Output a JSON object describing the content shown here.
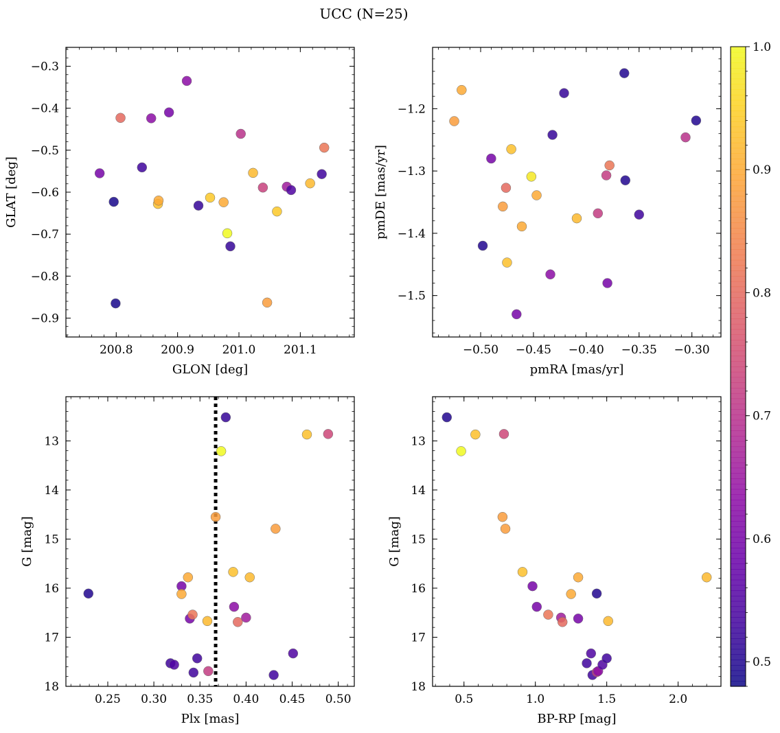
{
  "figure": {
    "title": "UCC (N=25)"
  },
  "colormap": {
    "name": "plasma",
    "min": 0.48,
    "max": 1.0,
    "ticks": [
      "0.5",
      "0.6",
      "0.7",
      "0.8",
      "0.9",
      "1.0"
    ],
    "tick_values": [
      0.5,
      0.6,
      0.7,
      0.8,
      0.9,
      1.0
    ]
  },
  "chart_data": [
    {
      "type": "scatter",
      "panel": "top-left",
      "xlabel": "GLON [deg]",
      "ylabel": "GLAT [deg]",
      "xlim": [
        200.718,
        201.188
      ],
      "ylim": [
        -0.945,
        -0.255
      ],
      "y_inverted": false,
      "xticks": [
        200.8,
        200.9,
        201.0,
        201.1
      ],
      "xtick_labels": [
        "200.8",
        "200.9",
        "201.0",
        "201.1"
      ],
      "yticks": [
        -0.9,
        -0.8,
        -0.7,
        -0.6,
        -0.5,
        -0.4,
        -0.3
      ],
      "ytick_labels": [
        "−0.9",
        "−0.8",
        "−0.7",
        "−0.6",
        "−0.5",
        "−0.4",
        "−0.3"
      ],
      "x": [
        200.773,
        200.796,
        200.799,
        200.807,
        200.842,
        200.857,
        200.868,
        200.869,
        200.886,
        200.915,
        200.934,
        200.953,
        200.975,
        200.981,
        200.986,
        201.003,
        201.023,
        201.039,
        201.046,
        201.062,
        201.078,
        201.085,
        201.116,
        201.135,
        201.139
      ],
      "y": [
        -0.555,
        -0.623,
        -0.865,
        -0.423,
        -0.541,
        -0.424,
        -0.628,
        -0.62,
        -0.41,
        -0.335,
        -0.632,
        -0.613,
        -0.624,
        -0.698,
        -0.729,
        -0.461,
        -0.554,
        -0.589,
        -0.863,
        -0.646,
        -0.587,
        -0.595,
        -0.579,
        -0.557,
        -0.494
      ],
      "c": [
        0.6,
        0.49,
        0.49,
        0.8,
        0.53,
        0.63,
        0.93,
        0.9,
        0.6,
        0.63,
        0.52,
        0.94,
        0.9,
        1.0,
        0.52,
        0.7,
        0.92,
        0.73,
        0.88,
        0.94,
        0.66,
        0.55,
        0.92,
        0.53,
        0.82
      ]
    },
    {
      "type": "scatter",
      "panel": "top-right",
      "xlabel": "pmRA [mas/yr]",
      "ylabel": "pmDE [mas/yr]",
      "xlim": [
        -0.5455,
        -0.2725
      ],
      "ylim": [
        -1.5665,
        -1.1015
      ],
      "y_inverted": false,
      "xticks": [
        -0.5,
        -0.45,
        -0.4,
        -0.35,
        -0.3
      ],
      "xtick_labels": [
        "−0.50",
        "−0.45",
        "−0.40",
        "−0.35",
        "−0.30"
      ],
      "yticks": [
        -1.5,
        -1.4,
        -1.3,
        -1.2
      ],
      "ytick_labels": [
        "−1.5",
        "−1.4",
        "−1.3",
        "−1.2"
      ],
      "x": [
        -0.525,
        -0.518,
        -0.498,
        -0.49,
        -0.479,
        -0.476,
        -0.475,
        -0.471,
        -0.466,
        -0.461,
        -0.452,
        -0.447,
        -0.434,
        -0.432,
        -0.421,
        -0.409,
        -0.389,
        -0.381,
        -0.38,
        -0.378,
        -0.364,
        -0.363,
        -0.35,
        -0.306,
        -0.296
      ],
      "y": [
        -1.22,
        -1.17,
        -1.42,
        -1.28,
        -1.357,
        -1.327,
        -1.447,
        -1.265,
        -1.53,
        -1.389,
        -1.309,
        -1.339,
        -1.466,
        -1.242,
        -1.175,
        -1.376,
        -1.368,
        -1.307,
        -1.48,
        -1.291,
        -1.143,
        -1.315,
        -1.37,
        -1.246,
        -1.219
      ],
      "c": [
        0.88,
        0.9,
        0.5,
        0.6,
        0.88,
        0.8,
        0.93,
        0.93,
        0.6,
        0.9,
        0.98,
        0.9,
        0.63,
        0.52,
        0.52,
        0.92,
        0.72,
        0.72,
        0.6,
        0.82,
        0.5,
        0.5,
        0.53,
        0.7,
        0.5
      ]
    },
    {
      "type": "scatter",
      "panel": "bottom-left",
      "xlabel": "Plx [mas]",
      "ylabel": "G [mag]",
      "xlim": [
        0.2046,
        0.5174
      ],
      "ylim": [
        18.0,
        12.1
      ],
      "y_inverted": true,
      "xticks": [
        0.25,
        0.3,
        0.35,
        0.4,
        0.45,
        0.5
      ],
      "xtick_labels": [
        "0.25",
        "0.30",
        "0.35",
        "0.40",
        "0.45",
        "0.50"
      ],
      "yticks": [
        13,
        14,
        15,
        16,
        17,
        18
      ],
      "ytick_labels": [
        "13",
        "14",
        "15",
        "16",
        "17",
        "18"
      ],
      "vline": 0.367,
      "x": [
        0.229,
        0.318,
        0.322,
        0.33,
        0.33,
        0.337,
        0.339,
        0.342,
        0.343,
        0.347,
        0.358,
        0.359,
        0.367,
        0.373,
        0.378,
        0.386,
        0.387,
        0.391,
        0.4,
        0.404,
        0.43,
        0.432,
        0.451,
        0.466,
        0.489
      ],
      "y": [
        16.11,
        17.53,
        17.56,
        15.96,
        16.12,
        15.78,
        16.62,
        16.54,
        17.72,
        17.43,
        16.67,
        17.69,
        14.55,
        13.21,
        12.52,
        15.67,
        16.38,
        16.69,
        16.6,
        15.78,
        17.77,
        14.79,
        17.33,
        12.87,
        12.86
      ],
      "c": [
        0.5,
        0.53,
        0.55,
        0.6,
        0.9,
        0.9,
        0.6,
        0.82,
        0.53,
        0.53,
        0.92,
        0.72,
        0.88,
        1.0,
        0.52,
        0.93,
        0.63,
        0.8,
        0.66,
        0.92,
        0.53,
        0.88,
        0.55,
        0.93,
        0.74
      ]
    },
    {
      "type": "scatter",
      "panel": "bottom-right",
      "xlabel": "BP-RP [mag]",
      "ylabel": "G [mag]",
      "xlim": [
        0.28,
        2.3
      ],
      "ylim": [
        18.0,
        12.1
      ],
      "y_inverted": true,
      "xticks": [
        0.5,
        1.0,
        1.5,
        2.0
      ],
      "xtick_labels": [
        "0.5",
        "1.0",
        "1.5",
        "2.0"
      ],
      "yticks": [
        13,
        14,
        15,
        16,
        17,
        18
      ],
      "ytick_labels": [
        "13",
        "14",
        "15",
        "16",
        "17",
        "18"
      ],
      "x": [
        0.38,
        0.48,
        0.58,
        0.77,
        0.78,
        0.79,
        0.91,
        0.98,
        1.01,
        1.09,
        1.18,
        1.19,
        1.25,
        1.3,
        1.3,
        1.36,
        1.39,
        1.4,
        1.43,
        1.43,
        1.44,
        1.47,
        1.5,
        1.51,
        2.2
      ],
      "y": [
        12.52,
        13.21,
        12.87,
        14.55,
        12.86,
        14.79,
        15.67,
        15.96,
        16.38,
        16.54,
        16.6,
        16.69,
        16.12,
        15.78,
        16.62,
        17.53,
        17.33,
        17.77,
        16.11,
        17.71,
        17.69,
        17.56,
        17.43,
        16.67,
        15.78
      ],
      "c": [
        0.5,
        1.0,
        0.93,
        0.88,
        0.74,
        0.88,
        0.93,
        0.6,
        0.6,
        0.82,
        0.66,
        0.8,
        0.9,
        0.9,
        0.6,
        0.53,
        0.55,
        0.53,
        0.5,
        0.72,
        0.63,
        0.55,
        0.53,
        0.92,
        0.92
      ]
    }
  ]
}
